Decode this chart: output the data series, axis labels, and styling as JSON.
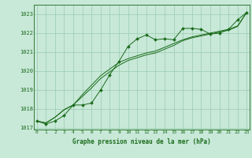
{
  "x": [
    0,
    1,
    2,
    3,
    4,
    5,
    6,
    7,
    8,
    9,
    10,
    11,
    12,
    13,
    14,
    15,
    16,
    17,
    18,
    19,
    20,
    21,
    22,
    23
  ],
  "line1": [
    1017.35,
    1017.2,
    1017.35,
    1017.65,
    1018.2,
    1018.2,
    1018.3,
    1019.0,
    1019.8,
    1020.5,
    1021.3,
    1021.7,
    1021.9,
    1021.65,
    1021.7,
    1021.65,
    1022.25,
    1022.25,
    1022.2,
    1021.95,
    1022.0,
    1022.2,
    1022.7,
    1023.1
  ],
  "line2": [
    1017.35,
    1017.25,
    1017.55,
    1017.95,
    1018.2,
    1018.65,
    1019.1,
    1019.6,
    1019.95,
    1020.3,
    1020.55,
    1020.7,
    1020.85,
    1020.95,
    1021.15,
    1021.35,
    1021.6,
    1021.75,
    1021.85,
    1021.95,
    1022.05,
    1022.15,
    1022.35,
    1023.1
  ],
  "line3": [
    1017.35,
    1017.25,
    1017.55,
    1017.95,
    1018.2,
    1018.75,
    1019.25,
    1019.75,
    1020.1,
    1020.45,
    1020.65,
    1020.8,
    1020.95,
    1021.05,
    1021.25,
    1021.45,
    1021.65,
    1021.8,
    1021.9,
    1022.0,
    1022.1,
    1022.2,
    1022.38,
    1023.1
  ],
  "ylim": [
    1016.9,
    1023.5
  ],
  "yticks": [
    1017,
    1018,
    1019,
    1020,
    1021,
    1022,
    1023
  ],
  "xticks": [
    0,
    1,
    2,
    3,
    4,
    5,
    6,
    7,
    8,
    9,
    10,
    11,
    12,
    13,
    14,
    15,
    16,
    17,
    18,
    19,
    20,
    21,
    22,
    23
  ],
  "xlabel": "Graphe pression niveau de la mer (hPa)",
  "line_color": "#1a6b1a",
  "bg_color": "#c8e8d8",
  "grid_color": "#99ccb0",
  "marker": "D",
  "marker_size": 2.0
}
